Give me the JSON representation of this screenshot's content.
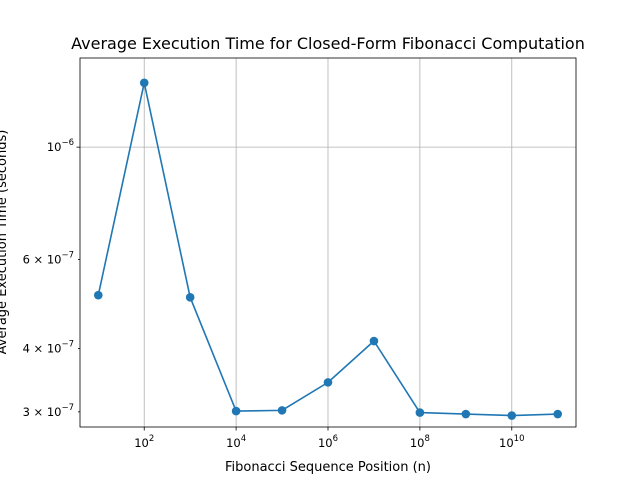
{
  "chart_data": {
    "type": "line",
    "title": "Average Execution Time for Closed-Form Fibonacci Computation",
    "xlabel": "Fibonacci Sequence Position (n)",
    "ylabel": "Average Execution Time (seconds)",
    "x_scale": "log",
    "y_scale": "log",
    "xlim": [
      4.0,
      250000000000
    ],
    "ylim": [
      2.8e-07,
      1.5e-06
    ],
    "grid": true,
    "marker": "circle",
    "line_color": "#1f77b4",
    "x_ticks": [
      {
        "value": 100,
        "base": "10",
        "exp": "2"
      },
      {
        "value": 10000,
        "base": "10",
        "exp": "4"
      },
      {
        "value": 1000000,
        "base": "10",
        "exp": "6"
      },
      {
        "value": 100000000,
        "base": "10",
        "exp": "8"
      },
      {
        "value": 10000000000,
        "base": "10",
        "exp": "10"
      }
    ],
    "y_ticks": [
      {
        "value": 1e-06,
        "prefix": "",
        "base": "10",
        "exp": "−6"
      },
      {
        "value": 6e-07,
        "prefix": "6 × ",
        "base": "10",
        "exp": "−7"
      },
      {
        "value": 4e-07,
        "prefix": "4 × ",
        "base": "10",
        "exp": "−7"
      },
      {
        "value": 3e-07,
        "prefix": "3 × ",
        "base": "10",
        "exp": "−7"
      }
    ],
    "series": [
      {
        "x": [
          10,
          100,
          1000,
          10000,
          100000,
          1000000,
          10000000,
          100000000,
          1000000000,
          10000000000,
          100000000000
        ],
        "y": [
          5.1e-07,
          1.34e-06,
          5.05e-07,
          3.01e-07,
          3.02e-07,
          3.43e-07,
          4.14e-07,
          2.99e-07,
          2.97e-07,
          2.95e-07,
          2.97e-07
        ]
      }
    ]
  }
}
